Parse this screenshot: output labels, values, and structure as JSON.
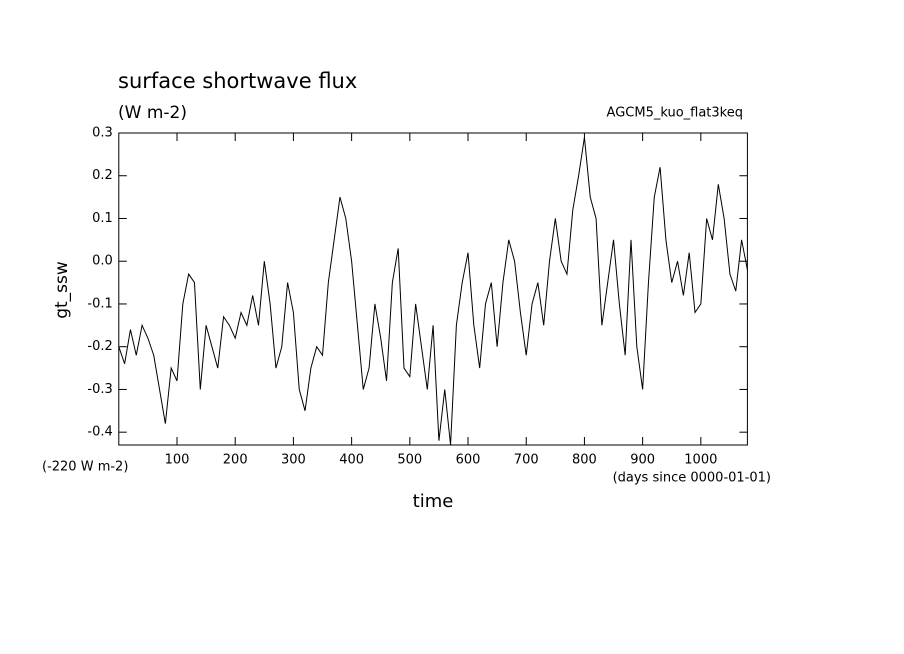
{
  "chart_data": {
    "type": "line",
    "title": "surface shortwave flux",
    "subtitle": "(W m-2)",
    "annotation": "AGCM5_kuo_flat3keq",
    "offset_note": "(-220 W m-2)",
    "x_units": "(days since 0000-01-01)",
    "x_label": "time",
    "y_label": "gt_ssw",
    "color": "#000000",
    "xlim": [
      0,
      1080
    ],
    "ylim": [
      -0.43,
      0.3
    ],
    "xticks": [
      100,
      200,
      300,
      400,
      500,
      600,
      700,
      800,
      900,
      1000
    ],
    "yticks": [
      -0.4,
      -0.3,
      -0.2,
      -0.1,
      {
        "value": 0,
        "label": "0.0"
      },
      0.1,
      0.2,
      0.3
    ],
    "x": [
      0,
      10,
      20,
      30,
      40,
      50,
      60,
      70,
      80,
      90,
      100,
      110,
      120,
      130,
      140,
      150,
      160,
      170,
      180,
      190,
      200,
      210,
      220,
      230,
      240,
      250,
      260,
      270,
      280,
      290,
      300,
      310,
      320,
      330,
      340,
      350,
      360,
      370,
      380,
      390,
      400,
      410,
      420,
      430,
      440,
      450,
      460,
      470,
      480,
      490,
      500,
      510,
      520,
      530,
      540,
      550,
      560,
      570,
      580,
      590,
      600,
      610,
      620,
      630,
      640,
      650,
      660,
      670,
      680,
      690,
      700,
      710,
      720,
      730,
      740,
      750,
      760,
      770,
      780,
      790,
      800,
      810,
      820,
      830,
      840,
      850,
      860,
      870,
      880,
      890,
      900,
      910,
      920,
      930,
      940,
      950,
      960,
      970,
      980,
      990,
      1000,
      1010,
      1020,
      1030,
      1040,
      1050,
      1060,
      1070,
      1080
    ],
    "values": [
      -0.2,
      -0.24,
      -0.16,
      -0.22,
      -0.15,
      -0.18,
      -0.22,
      -0.3,
      -0.38,
      -0.25,
      -0.28,
      -0.1,
      -0.03,
      -0.05,
      -0.3,
      -0.15,
      -0.2,
      -0.25,
      -0.13,
      -0.15,
      -0.18,
      -0.12,
      -0.15,
      -0.08,
      -0.15,
      0.0,
      -0.1,
      -0.25,
      -0.2,
      -0.05,
      -0.12,
      -0.3,
      -0.35,
      -0.25,
      -0.2,
      -0.22,
      -0.05,
      0.05,
      0.15,
      0.1,
      0.0,
      -0.15,
      -0.3,
      -0.25,
      -0.1,
      -0.18,
      -0.28,
      -0.05,
      0.03,
      -0.25,
      -0.27,
      -0.1,
      -0.2,
      -0.3,
      -0.15,
      -0.42,
      -0.3,
      -0.43,
      -0.15,
      -0.05,
      0.02,
      -0.15,
      -0.25,
      -0.1,
      -0.05,
      -0.2,
      -0.05,
      0.05,
      0.0,
      -0.12,
      -0.22,
      -0.1,
      -0.05,
      -0.15,
      0.0,
      0.1,
      0.0,
      -0.03,
      0.12,
      0.2,
      0.29,
      0.15,
      0.1,
      -0.15,
      -0.05,
      0.05,
      -0.1,
      -0.22,
      0.05,
      -0.2,
      -0.3,
      -0.05,
      0.15,
      0.22,
      0.05,
      -0.05,
      0.0,
      -0.08,
      0.02,
      -0.12,
      -0.1,
      0.1,
      0.05,
      0.18,
      0.1,
      -0.03,
      -0.07,
      0.05,
      -0.02
    ]
  }
}
